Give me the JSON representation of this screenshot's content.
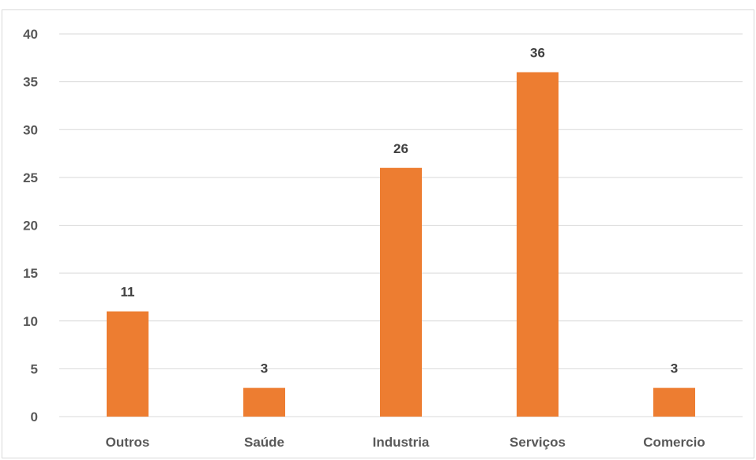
{
  "chart_data": {
    "type": "bar",
    "title": "",
    "xlabel": "",
    "ylabel": "",
    "categories": [
      "Outros",
      "Saúde",
      "Industria",
      "Serviços",
      "Comercio"
    ],
    "values": [
      11,
      3,
      26,
      36,
      3
    ],
    "data_labels": [
      "11",
      "3",
      "26",
      "36",
      "3"
    ],
    "ylim": [
      0,
      40
    ],
    "yticks": [
      0,
      5,
      10,
      15,
      20,
      25,
      30,
      35,
      40
    ],
    "ytick_labels": [
      "0",
      "5",
      "10",
      "15",
      "20",
      "25",
      "30",
      "35",
      "40"
    ],
    "grid": true,
    "legend": "none",
    "bar_color": "#ed7d31",
    "gridline_color": "#d9d9d9"
  }
}
